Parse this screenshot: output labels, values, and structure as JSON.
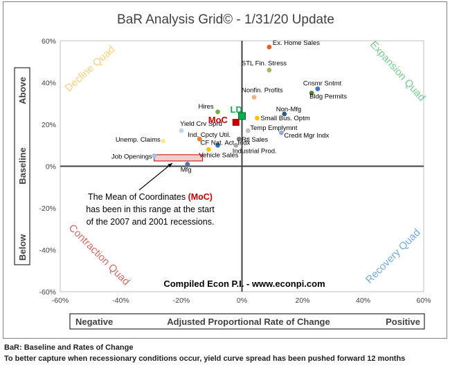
{
  "chart_data": {
    "type": "scatter",
    "title": "BaR Analysis Grid© - 1/31/20 Update",
    "xlim": [
      -60,
      60
    ],
    "ylim": [
      -60,
      60
    ],
    "x_ticks": [
      "-60%",
      "-40%",
      "-20%",
      "0%",
      "20%",
      "40%",
      "60%"
    ],
    "y_ticks": [
      "60%",
      "40%",
      "20%",
      "0%",
      "-20%",
      "-40%",
      "-60%"
    ],
    "x_axis_label": {
      "left": "Negative",
      "center": "Adjusted Proportional Rate of Change",
      "right": "Positive"
    },
    "y_axis_label": {
      "top": "Above",
      "center": "Baseline",
      "bottom": "Below"
    },
    "grid": false,
    "quadrants": [
      {
        "name": "Decline Quad",
        "color": "#f6c761"
      },
      {
        "name": "Expansion Quad",
        "color": "#5ec27c"
      },
      {
        "name": "Contraction Quad",
        "color": "#c9504c"
      },
      {
        "name": "Recovery Quad",
        "color": "#5b9bd5"
      }
    ],
    "points": [
      {
        "label": "Ex. Home Sales",
        "x": 9,
        "y": 57,
        "color": "#d9662b"
      },
      {
        "label": "STL Fin. Stress",
        "x": 9,
        "y": 46,
        "color": "#9bbb59"
      },
      {
        "label": "Nonfin. Profits",
        "x": 4,
        "y": 33,
        "color": "#f4b183"
      },
      {
        "label": "Cnsmr Sntmt",
        "x": 25,
        "y": 37,
        "color": "#4472c4"
      },
      {
        "label": "Bldg Permits",
        "x": 23,
        "y": 35,
        "color": "#548235"
      },
      {
        "label": "Hires",
        "x": -8,
        "y": 26,
        "color": "#70ad47"
      },
      {
        "label": "Non-Mfg",
        "x": 14,
        "y": 25,
        "color": "#2f5597"
      },
      {
        "label": "Small Bus. Optm",
        "x": 5,
        "y": 23,
        "color": "#ffc000"
      },
      {
        "label": "Temp Emplymnt",
        "x": 2,
        "y": 17,
        "color": "#bfbfbf"
      },
      {
        "label": "Credit Mgr Indx",
        "x": 13,
        "y": 16,
        "color": "#8faadc"
      },
      {
        "label": "Yield Crv Sprd",
        "x": -20,
        "y": 17,
        "color": "#bdd7ee"
      },
      {
        "label": "Unemp. Claims",
        "x": -26,
        "y": 12,
        "color": "#ffe699"
      },
      {
        "label": "Ind. Cpcty Util.",
        "x": -14,
        "y": 13,
        "color": "#ed7d31"
      },
      {
        "label": "Rtl Sales",
        "x": -1,
        "y": 13,
        "color": "#7f7f7f"
      },
      {
        "label": "CF Nat. Act. Indx",
        "x": -8,
        "y": 10,
        "color": "#2e75b6"
      },
      {
        "label": "Industrial Prod.",
        "x": -2,
        "y": 10,
        "color": "#a6a6a6"
      },
      {
        "label": "Vehicle Sales",
        "x": -11,
        "y": 8,
        "color": "#ffc000"
      },
      {
        "label": "Job Openings",
        "x": -29,
        "y": 5,
        "color": "#9dc3e6"
      },
      {
        "label": "Mfg",
        "x": -18,
        "y": 1,
        "color": "#4a74b4"
      }
    ],
    "markers": [
      {
        "label": "LD",
        "x": 0,
        "y": 24,
        "color": "#00b050"
      },
      {
        "label": "MoC",
        "x": -2,
        "y": 21,
        "color": "#c00000"
      }
    ],
    "moc_range": {
      "x": [
        -29,
        -13
      ],
      "y": [
        2.5,
        5.5
      ],
      "color": "#c00000"
    },
    "annotation": {
      "lines": [
        "The Mean of Coordinates (MoC)",
        "has been in this range at the start",
        "of the 2007 and 2001 recessions."
      ]
    },
    "watermark": "Compiled Econ P.I. - www.econpi.com"
  },
  "footer": {
    "line1": "BaR: Baseline and Rates of Change",
    "line2": "To better capture when recessionary conditions occur, yield curve spread has been pushed forward 12 months"
  }
}
